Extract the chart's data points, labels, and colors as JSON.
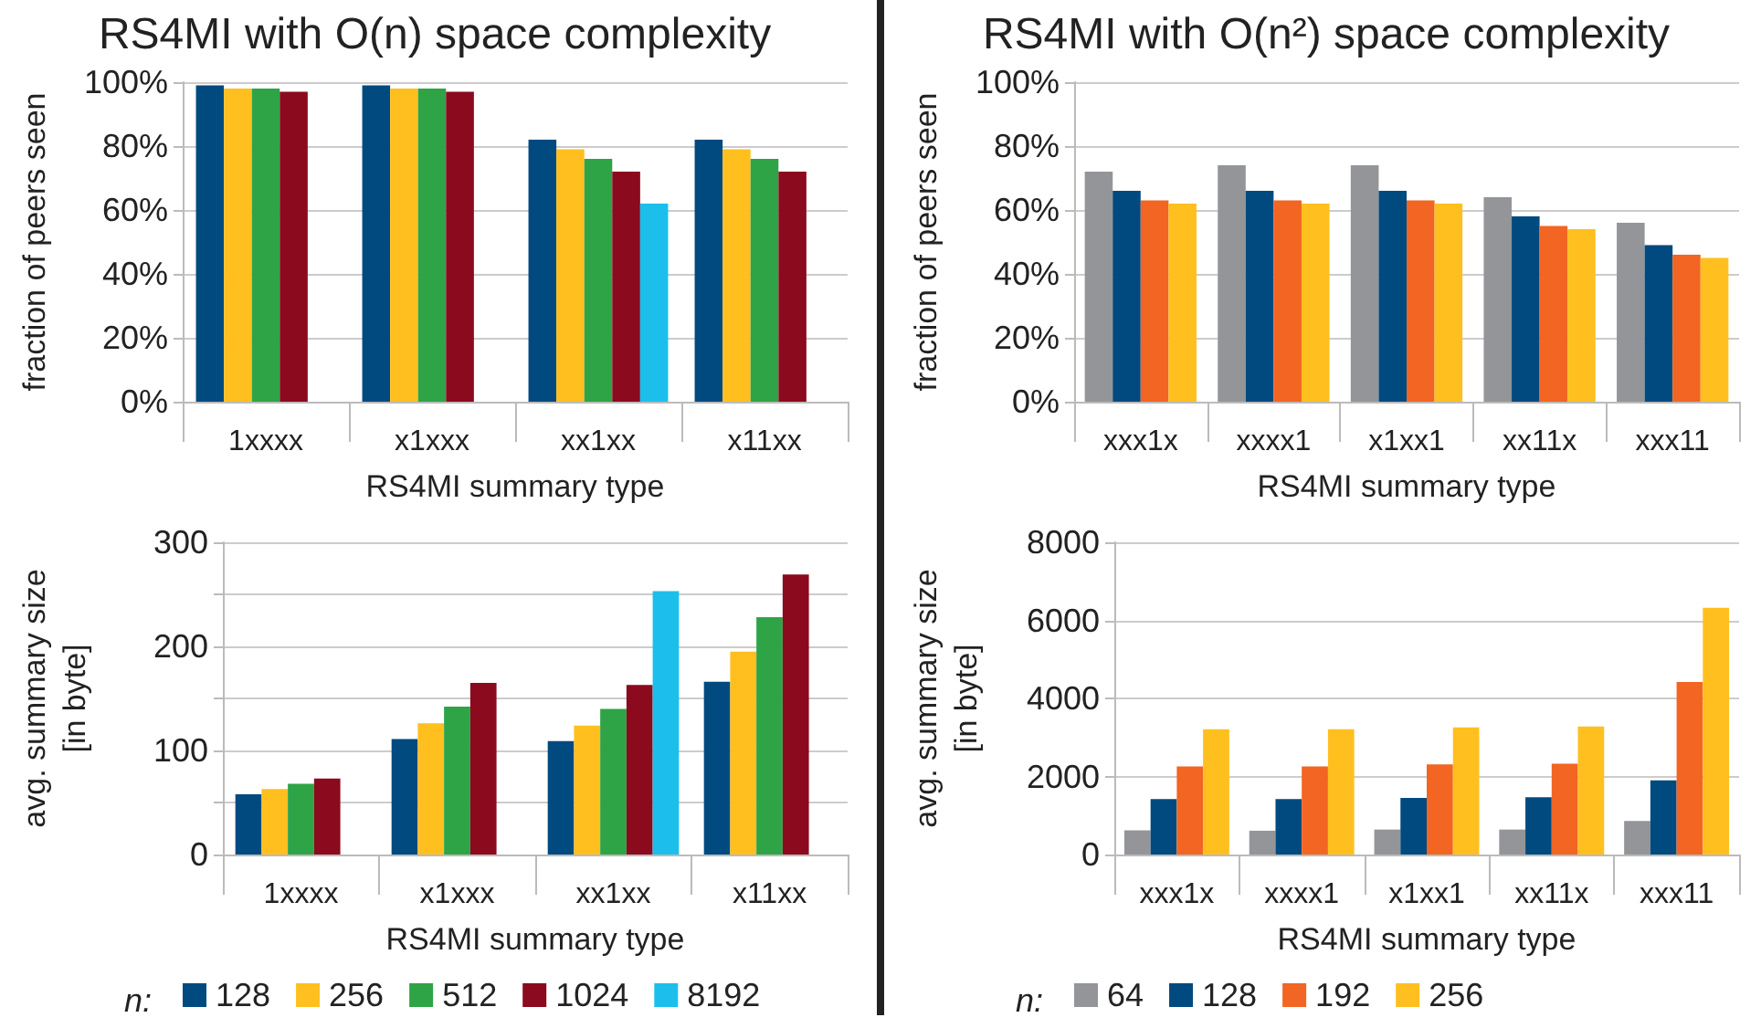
{
  "chart_data": [
    {
      "type": "bar",
      "title": "RS4MI with O(n) space complexity",
      "xlabel": "RS4MI summary type",
      "ylabel": "fraction of peers seen",
      "categories": [
        "1xxxx",
        "x1xxx",
        "xx1xx",
        "x11xx"
      ],
      "series": [
        {
          "color": "#004a7f",
          "values": [
            99,
            99,
            82,
            82
          ]
        },
        {
          "color": "#ffbf1f",
          "values": [
            98,
            98,
            79,
            79
          ]
        },
        {
          "color": "#2ea447",
          "values": [
            98,
            98,
            76,
            76
          ]
        },
        {
          "color": "#8b0a1e",
          "values": [
            97,
            97,
            72,
            72
          ]
        },
        {
          "color": "#1cbfeb",
          "values": [
            null,
            null,
            62,
            null
          ]
        }
      ],
      "ylim": [
        0,
        100
      ],
      "yticks": [
        {
          "value": 0,
          "label": "0%"
        },
        {
          "value": 20,
          "label": "20%"
        },
        {
          "value": 40,
          "label": "40%"
        },
        {
          "value": 60,
          "label": "60%"
        },
        {
          "value": 80,
          "label": "80%"
        },
        {
          "value": 100,
          "label": "100%"
        }
      ],
      "grid": "y"
    },
    {
      "type": "bar",
      "title": "RS4MI with O(n²) space complexity",
      "xlabel": "RS4MI summary type",
      "ylabel": "fraction of peers seen",
      "categories": [
        "xxx1x",
        "xxxx1",
        "x1xx1",
        "xx11x",
        "xxx11"
      ],
      "series": [
        {
          "color": "#939598",
          "values": [
            72,
            74,
            74,
            64,
            56
          ]
        },
        {
          "color": "#004a7f",
          "values": [
            66,
            66,
            66,
            58,
            49
          ]
        },
        {
          "color": "#f26522",
          "values": [
            63,
            63,
            63,
            55,
            46
          ]
        },
        {
          "color": "#ffbf1f",
          "values": [
            62,
            62,
            62,
            54,
            45
          ]
        }
      ],
      "ylim": [
        0,
        100
      ],
      "yticks": [
        {
          "value": 0,
          "label": "0%"
        },
        {
          "value": 20,
          "label": "20%"
        },
        {
          "value": 40,
          "label": "40%"
        },
        {
          "value": 60,
          "label": "60%"
        },
        {
          "value": 80,
          "label": "80%"
        },
        {
          "value": 100,
          "label": "100%"
        }
      ],
      "grid": "y"
    },
    {
      "type": "bar",
      "xlabel": "RS4MI summary type",
      "ylabel": "avg. summary size\n[in byte]",
      "categories": [
        "1xxxx",
        "x1xxx",
        "xx1xx",
        "x11xx"
      ],
      "series": [
        {
          "name": "128",
          "color": "#004a7f",
          "values": [
            58,
            111,
            109,
            166
          ]
        },
        {
          "name": "256",
          "color": "#ffbf1f",
          "values": [
            63,
            126,
            124,
            195
          ]
        },
        {
          "name": "512",
          "color": "#2ea447",
          "values": [
            68,
            142,
            140,
            228
          ]
        },
        {
          "name": "1024",
          "color": "#8b0a1e",
          "values": [
            73,
            165,
            163,
            269
          ]
        },
        {
          "name": "8192",
          "color": "#1cbfeb",
          "values": [
            null,
            null,
            253,
            null
          ]
        }
      ],
      "ylim": [
        0,
        300
      ],
      "yticks": [
        0,
        {
          "value": 50,
          "label": null
        },
        100,
        {
          "value": 150,
          "label": null
        },
        200,
        {
          "value": 250,
          "label": null
        },
        300
      ],
      "grid": "y",
      "legend": "bottom",
      "legend_title": "n:"
    },
    {
      "type": "bar",
      "xlabel": "RS4MI summary type",
      "ylabel": "avg. summary size\n[in byte]",
      "categories": [
        "xxx1x",
        "xxxx1",
        "x1xx1",
        "xx11x",
        "xxx11"
      ],
      "series": [
        {
          "name": "64",
          "color": "#939598",
          "values": [
            620,
            610,
            640,
            640,
            860
          ]
        },
        {
          "name": "128",
          "color": "#004a7f",
          "values": [
            1420,
            1420,
            1450,
            1470,
            1900
          ]
        },
        {
          "name": "192",
          "color": "#f26522",
          "values": [
            2260,
            2260,
            2310,
            2330,
            4420
          ]
        },
        {
          "name": "256",
          "color": "#ffbf1f",
          "values": [
            3210,
            3210,
            3260,
            3280,
            6320
          ]
        }
      ],
      "ylim": [
        0,
        8000
      ],
      "yticks": [
        0,
        2000,
        4000,
        6000,
        8000
      ],
      "grid": "y",
      "legend": "bottom",
      "legend_title": "n:"
    }
  ]
}
